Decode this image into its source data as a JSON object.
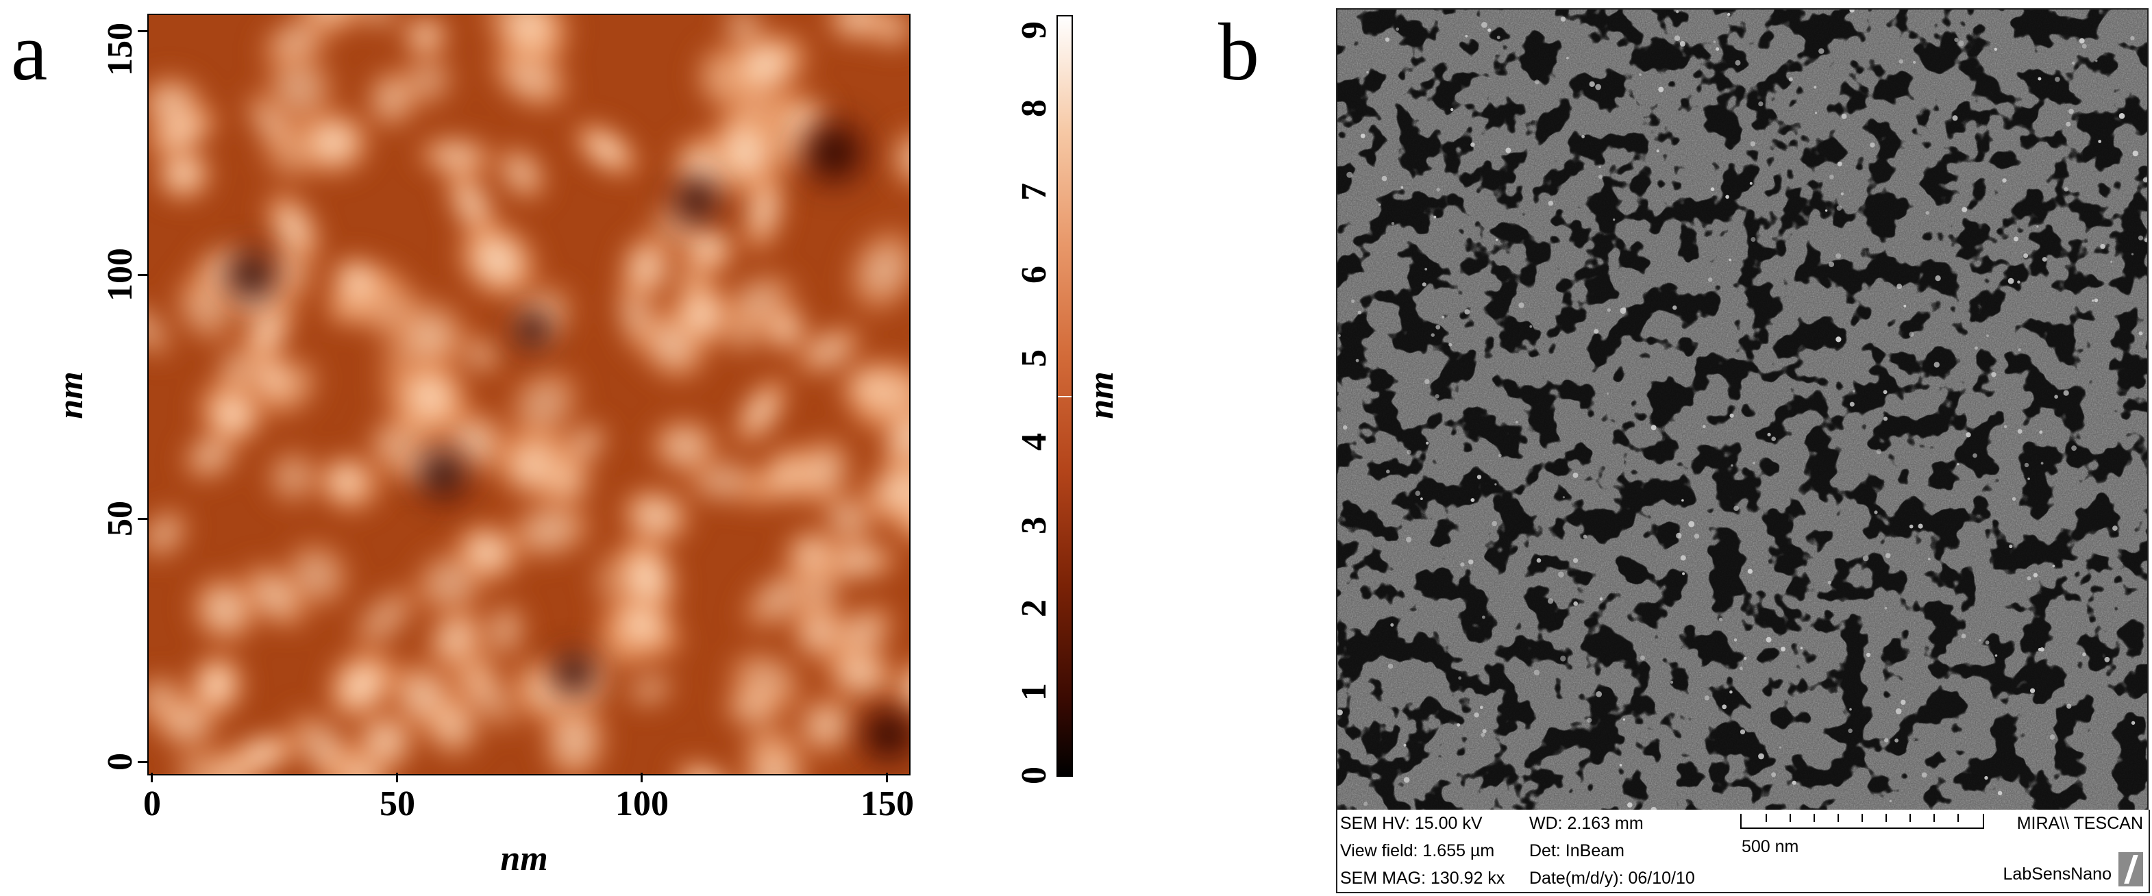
{
  "panel_a": {
    "letter": "a",
    "x_axis_label": "nm",
    "y_axis_label": "nm",
    "x_ticks": [
      "0",
      "50",
      "100",
      "150"
    ],
    "y_ticks": [
      "0",
      "50",
      "100",
      "150"
    ],
    "x_range": [
      0,
      155
    ],
    "y_range": [
      0,
      155
    ],
    "colorbar": {
      "label": "nm",
      "ticks": [
        "0",
        "1",
        "2",
        "3",
        "4",
        "5",
        "6",
        "7",
        "8",
        "9"
      ],
      "range": [
        0,
        9.1
      ],
      "marker_value": 4.55
    }
  },
  "panel_b": {
    "letter": "b",
    "info": {
      "hv": "SEM HV: 15.00 kV",
      "view_field": "View field: 1.655 µm",
      "mag": "SEM MAG: 130.92 kx",
      "wd": "WD: 2.163 mm",
      "det": "Det: InBeam",
      "date": "Date(m/d/y): 06/10/10",
      "scale": "500 nm",
      "brand": "MIRA\\\\ TESCAN",
      "lab": "LabSensNano"
    }
  },
  "colors": {
    "afm_low": "#000000",
    "afm_mid": "#b3441a",
    "afm_high": "#ffffff",
    "sem_gray": "#5a5a5a"
  }
}
